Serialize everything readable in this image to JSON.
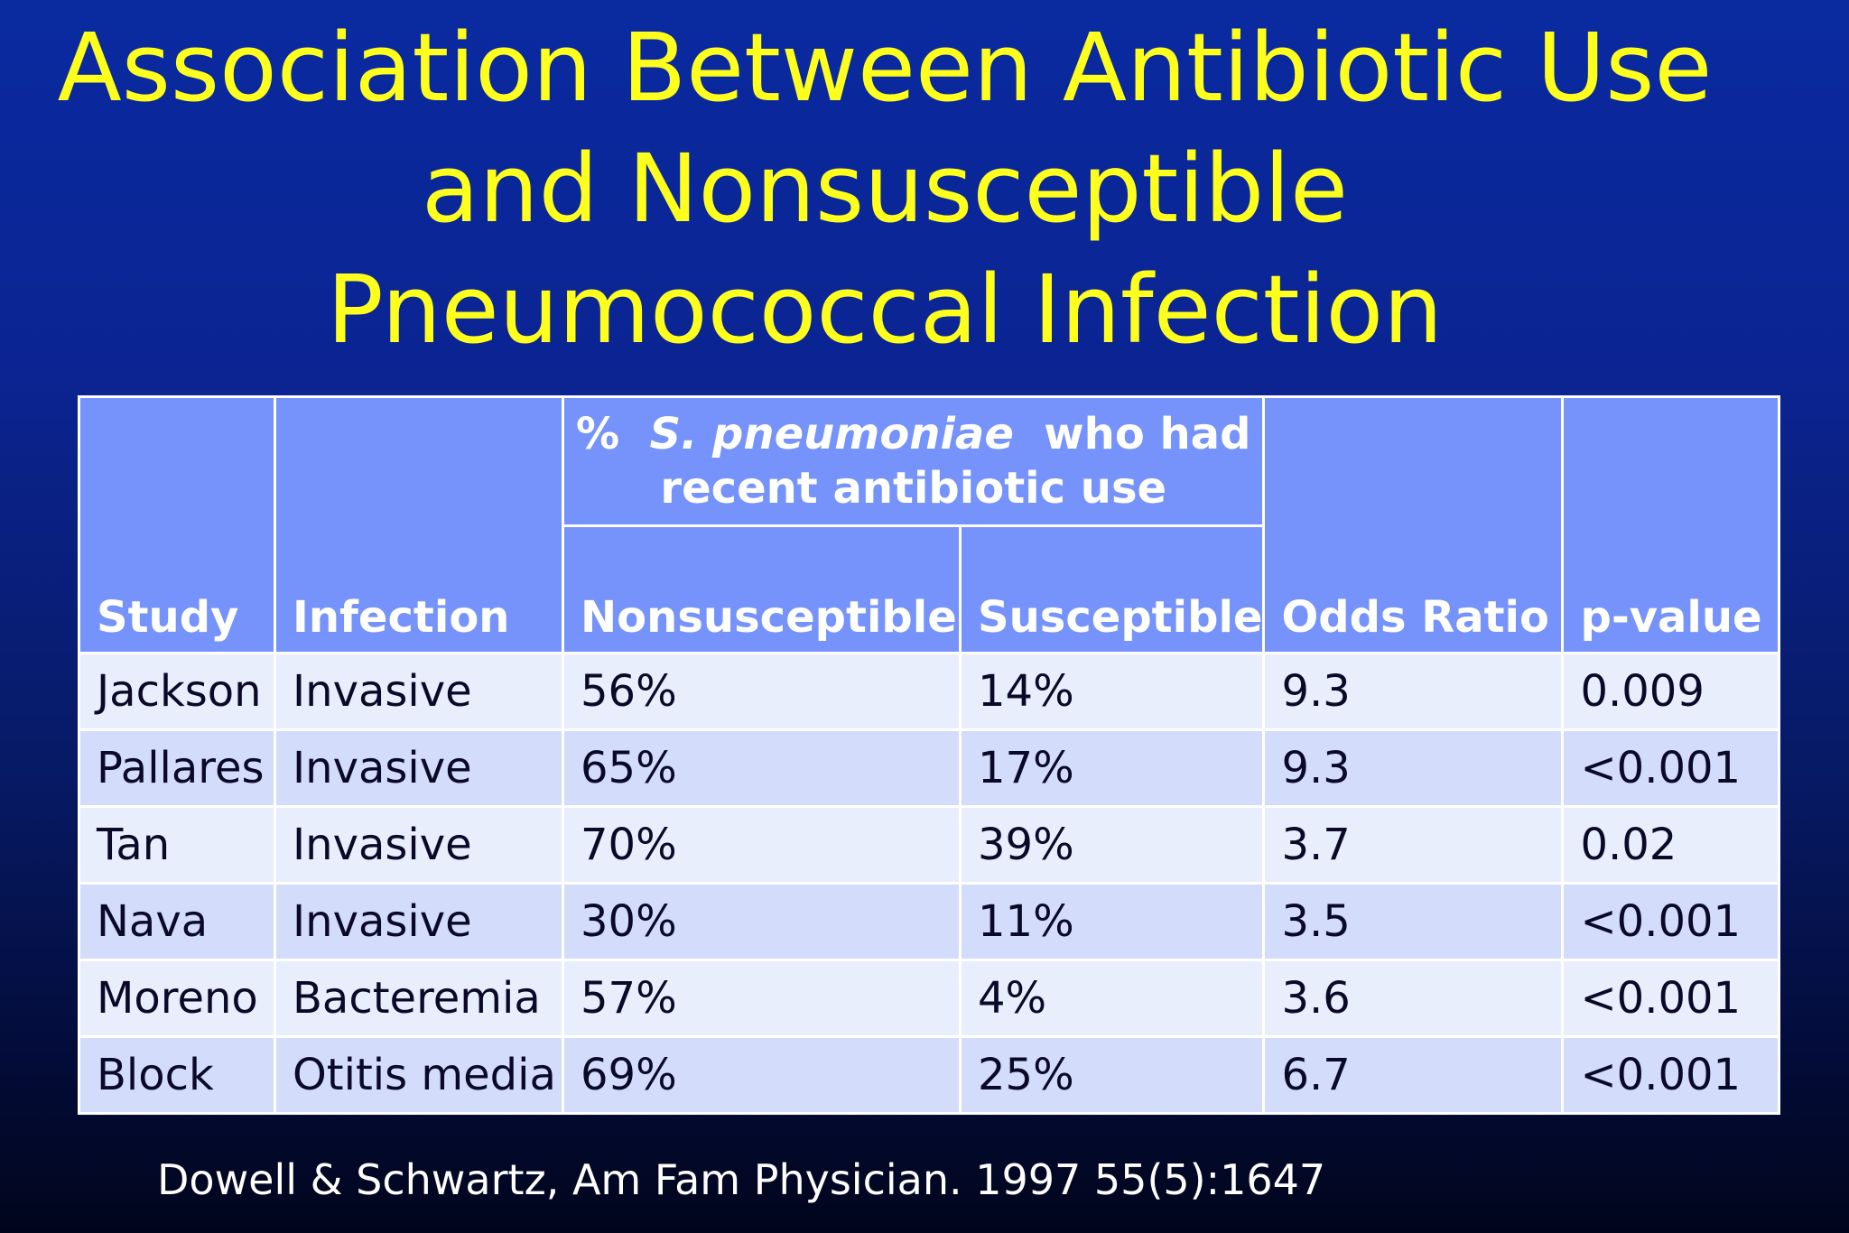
{
  "slide": {
    "title_lines": [
      "Association Between Antibiotic Use",
      "and Nonsusceptible",
      "Pneumococcal Infection"
    ],
    "citation": "Dowell & Schwartz, Am Fam Physician. 1997 55(5):1647"
  },
  "table": {
    "group_header": {
      "prefix": "%",
      "species": "S. pneumoniae",
      "suffix": "who had",
      "line2": "recent antibiotic use"
    },
    "columns": [
      "Study",
      "Infection",
      "Nonsusceptible",
      "Susceptible",
      "Odds Ratio",
      "p-value"
    ],
    "rows": [
      [
        "Jackson",
        "Invasive",
        "56%",
        "14%",
        "9.3",
        "0.009"
      ],
      [
        "Pallares",
        "Invasive",
        "65%",
        "17%",
        "9.3",
        "<0.001"
      ],
      [
        "Tan",
        "Invasive",
        "70%",
        "39%",
        "3.7",
        "0.02"
      ],
      [
        "Nava",
        "Invasive",
        "30%",
        "11%",
        "3.5",
        "<0.001"
      ],
      [
        "Moreno",
        "Bacteremia",
        "57%",
        "4%",
        "3.6",
        "<0.001"
      ],
      [
        "Block",
        "Otitis media",
        "69%",
        "25%",
        "6.7",
        "<0.001"
      ]
    ]
  },
  "colors": {
    "title": "#ffff1e",
    "header_bg": "#7593fa",
    "row_light": "#e9eefd",
    "row_dark": "#d3dcfb",
    "background_top": "#0a2aa0",
    "background_bottom": "#01051c"
  }
}
